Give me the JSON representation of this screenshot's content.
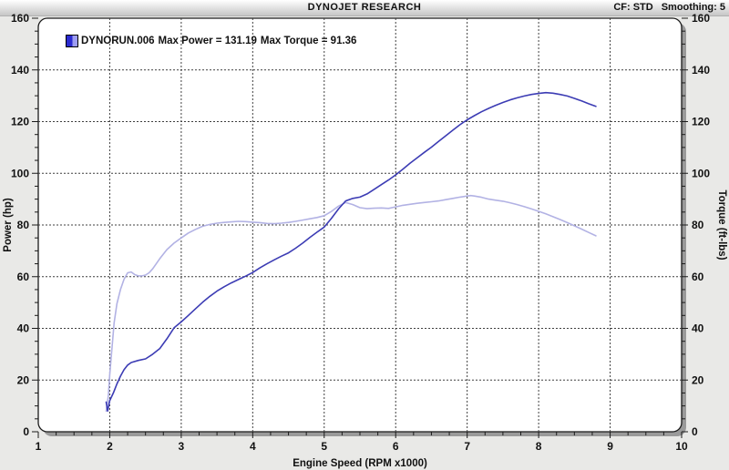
{
  "header": {
    "title": "DYNOJET RESEARCH",
    "cf_label": "CF: STD",
    "smoothing_label": "Smoothing: 5"
  },
  "legend": {
    "run_name": "DYNORUN.006",
    "max_power_text": "Max Power = 131.19",
    "max_torque_text": "Max Torque = 91.36",
    "swatch_dark": "#2b2bd0",
    "swatch_light": "#9d9df2"
  },
  "chart_data": {
    "type": "line",
    "title": "DYNOJET RESEARCH",
    "xlabel": "Engine Speed (RPM x1000)",
    "ylabel_left": "Power (hp)",
    "ylabel_right": "Torque (ft-lbs)",
    "xlim": [
      1,
      10
    ],
    "ylim": [
      0,
      160
    ],
    "x_ticks": [
      1,
      2,
      3,
      4,
      5,
      6,
      7,
      8,
      9,
      10
    ],
    "y_ticks": [
      0,
      20,
      40,
      60,
      80,
      100,
      120,
      140,
      160
    ],
    "x_minor_step": 0.25,
    "y_minor_step": 5,
    "grid": "dotted",
    "max_power": 131.19,
    "max_torque": 91.36,
    "colors": {
      "grid": "#3f3f3f",
      "panel": "#ffffff",
      "shadow": "#9a9a9a",
      "frame": "#1a1a1a"
    },
    "series": [
      {
        "name": "Torque (ft-lbs)",
        "axis": "right",
        "color": "#b2b2e4",
        "points": [
          [
            1.95,
            8.0
          ],
          [
            1.98,
            14.0
          ],
          [
            2.0,
            22.0
          ],
          [
            2.03,
            32.0
          ],
          [
            2.06,
            42.0
          ],
          [
            2.1,
            49.5
          ],
          [
            2.15,
            55.0
          ],
          [
            2.2,
            59.0
          ],
          [
            2.25,
            61.5
          ],
          [
            2.3,
            61.8
          ],
          [
            2.35,
            60.8
          ],
          [
            2.4,
            60.3
          ],
          [
            2.45,
            60.3
          ],
          [
            2.5,
            60.6
          ],
          [
            2.55,
            61.5
          ],
          [
            2.6,
            63.0
          ],
          [
            2.7,
            67.0
          ],
          [
            2.8,
            70.5
          ],
          [
            2.9,
            73.0
          ],
          [
            3.0,
            75.0
          ],
          [
            3.1,
            76.9
          ],
          [
            3.2,
            78.3
          ],
          [
            3.3,
            79.5
          ],
          [
            3.4,
            80.2
          ],
          [
            3.5,
            80.7
          ],
          [
            3.6,
            81.0
          ],
          [
            3.7,
            81.2
          ],
          [
            3.8,
            81.4
          ],
          [
            3.9,
            81.3
          ],
          [
            4.0,
            81.1
          ],
          [
            4.1,
            80.9
          ],
          [
            4.2,
            80.6
          ],
          [
            4.3,
            80.5
          ],
          [
            4.4,
            80.7
          ],
          [
            4.5,
            81.0
          ],
          [
            4.6,
            81.4
          ],
          [
            4.7,
            81.9
          ],
          [
            4.8,
            82.4
          ],
          [
            4.9,
            82.9
          ],
          [
            5.0,
            83.6
          ],
          [
            5.1,
            85.2
          ],
          [
            5.2,
            87.3
          ],
          [
            5.3,
            88.7
          ],
          [
            5.4,
            87.9
          ],
          [
            5.5,
            86.7
          ],
          [
            5.6,
            86.3
          ],
          [
            5.7,
            86.5
          ],
          [
            5.8,
            86.6
          ],
          [
            5.9,
            86.4
          ],
          [
            6.0,
            87.0
          ],
          [
            6.1,
            87.6
          ],
          [
            6.2,
            88.0
          ],
          [
            6.3,
            88.4
          ],
          [
            6.4,
            88.7
          ],
          [
            6.5,
            89.0
          ],
          [
            6.6,
            89.3
          ],
          [
            6.7,
            89.8
          ],
          [
            6.8,
            90.3
          ],
          [
            6.9,
            90.8
          ],
          [
            7.0,
            91.2
          ],
          [
            7.05,
            91.4
          ],
          [
            7.1,
            91.2
          ],
          [
            7.2,
            90.7
          ],
          [
            7.3,
            90.0
          ],
          [
            7.4,
            89.6
          ],
          [
            7.5,
            89.2
          ],
          [
            7.6,
            88.6
          ],
          [
            7.7,
            87.9
          ],
          [
            7.8,
            87.1
          ],
          [
            7.9,
            86.2
          ],
          [
            8.0,
            85.3
          ],
          [
            8.1,
            84.3
          ],
          [
            8.2,
            83.2
          ],
          [
            8.3,
            82.1
          ],
          [
            8.4,
            80.9
          ],
          [
            8.5,
            79.7
          ],
          [
            8.6,
            78.4
          ],
          [
            8.7,
            77.1
          ],
          [
            8.8,
            75.8
          ]
        ]
      },
      {
        "name": "Power (hp)",
        "axis": "left",
        "color": "#3c3cb4",
        "points": [
          [
            1.95,
            11.5
          ],
          [
            1.97,
            8.0
          ],
          [
            2.0,
            12.0
          ],
          [
            2.05,
            15.0
          ],
          [
            2.1,
            18.5
          ],
          [
            2.15,
            21.5
          ],
          [
            2.2,
            24.0
          ],
          [
            2.25,
            25.8
          ],
          [
            2.3,
            26.8
          ],
          [
            2.4,
            27.6
          ],
          [
            2.5,
            28.2
          ],
          [
            2.6,
            30.0
          ],
          [
            2.7,
            32.2
          ],
          [
            2.8,
            36.0
          ],
          [
            2.9,
            40.2
          ],
          [
            3.0,
            42.5
          ],
          [
            3.1,
            45.0
          ],
          [
            3.2,
            47.6
          ],
          [
            3.3,
            50.1
          ],
          [
            3.4,
            52.4
          ],
          [
            3.5,
            54.4
          ],
          [
            3.6,
            56.1
          ],
          [
            3.7,
            57.6
          ],
          [
            3.8,
            58.9
          ],
          [
            3.9,
            60.2
          ],
          [
            4.0,
            61.6
          ],
          [
            4.1,
            63.4
          ],
          [
            4.2,
            65.0
          ],
          [
            4.3,
            66.5
          ],
          [
            4.4,
            67.9
          ],
          [
            4.5,
            69.2
          ],
          [
            4.6,
            71.0
          ],
          [
            4.7,
            73.0
          ],
          [
            4.8,
            75.2
          ],
          [
            4.9,
            77.2
          ],
          [
            5.0,
            79.2
          ],
          [
            5.1,
            82.5
          ],
          [
            5.2,
            86.2
          ],
          [
            5.3,
            89.3
          ],
          [
            5.4,
            90.3
          ],
          [
            5.5,
            90.8
          ],
          [
            5.6,
            92.0
          ],
          [
            5.7,
            93.8
          ],
          [
            5.8,
            95.6
          ],
          [
            5.9,
            97.4
          ],
          [
            6.0,
            99.4
          ],
          [
            6.1,
            101.6
          ],
          [
            6.2,
            103.9
          ],
          [
            6.3,
            106.0
          ],
          [
            6.4,
            108.1
          ],
          [
            6.5,
            110.1
          ],
          [
            6.6,
            112.3
          ],
          [
            6.7,
            114.5
          ],
          [
            6.8,
            116.7
          ],
          [
            6.9,
            118.8
          ],
          [
            7.0,
            120.7
          ],
          [
            7.1,
            122.3
          ],
          [
            7.2,
            123.8
          ],
          [
            7.3,
            125.1
          ],
          [
            7.4,
            126.3
          ],
          [
            7.5,
            127.4
          ],
          [
            7.6,
            128.4
          ],
          [
            7.7,
            129.2
          ],
          [
            7.8,
            129.9
          ],
          [
            7.9,
            130.5
          ],
          [
            8.0,
            130.9
          ],
          [
            8.1,
            131.2
          ],
          [
            8.2,
            131.0
          ],
          [
            8.3,
            130.5
          ],
          [
            8.4,
            129.9
          ],
          [
            8.5,
            129.0
          ],
          [
            8.6,
            128.0
          ],
          [
            8.7,
            126.9
          ],
          [
            8.8,
            125.9
          ]
        ]
      }
    ]
  }
}
